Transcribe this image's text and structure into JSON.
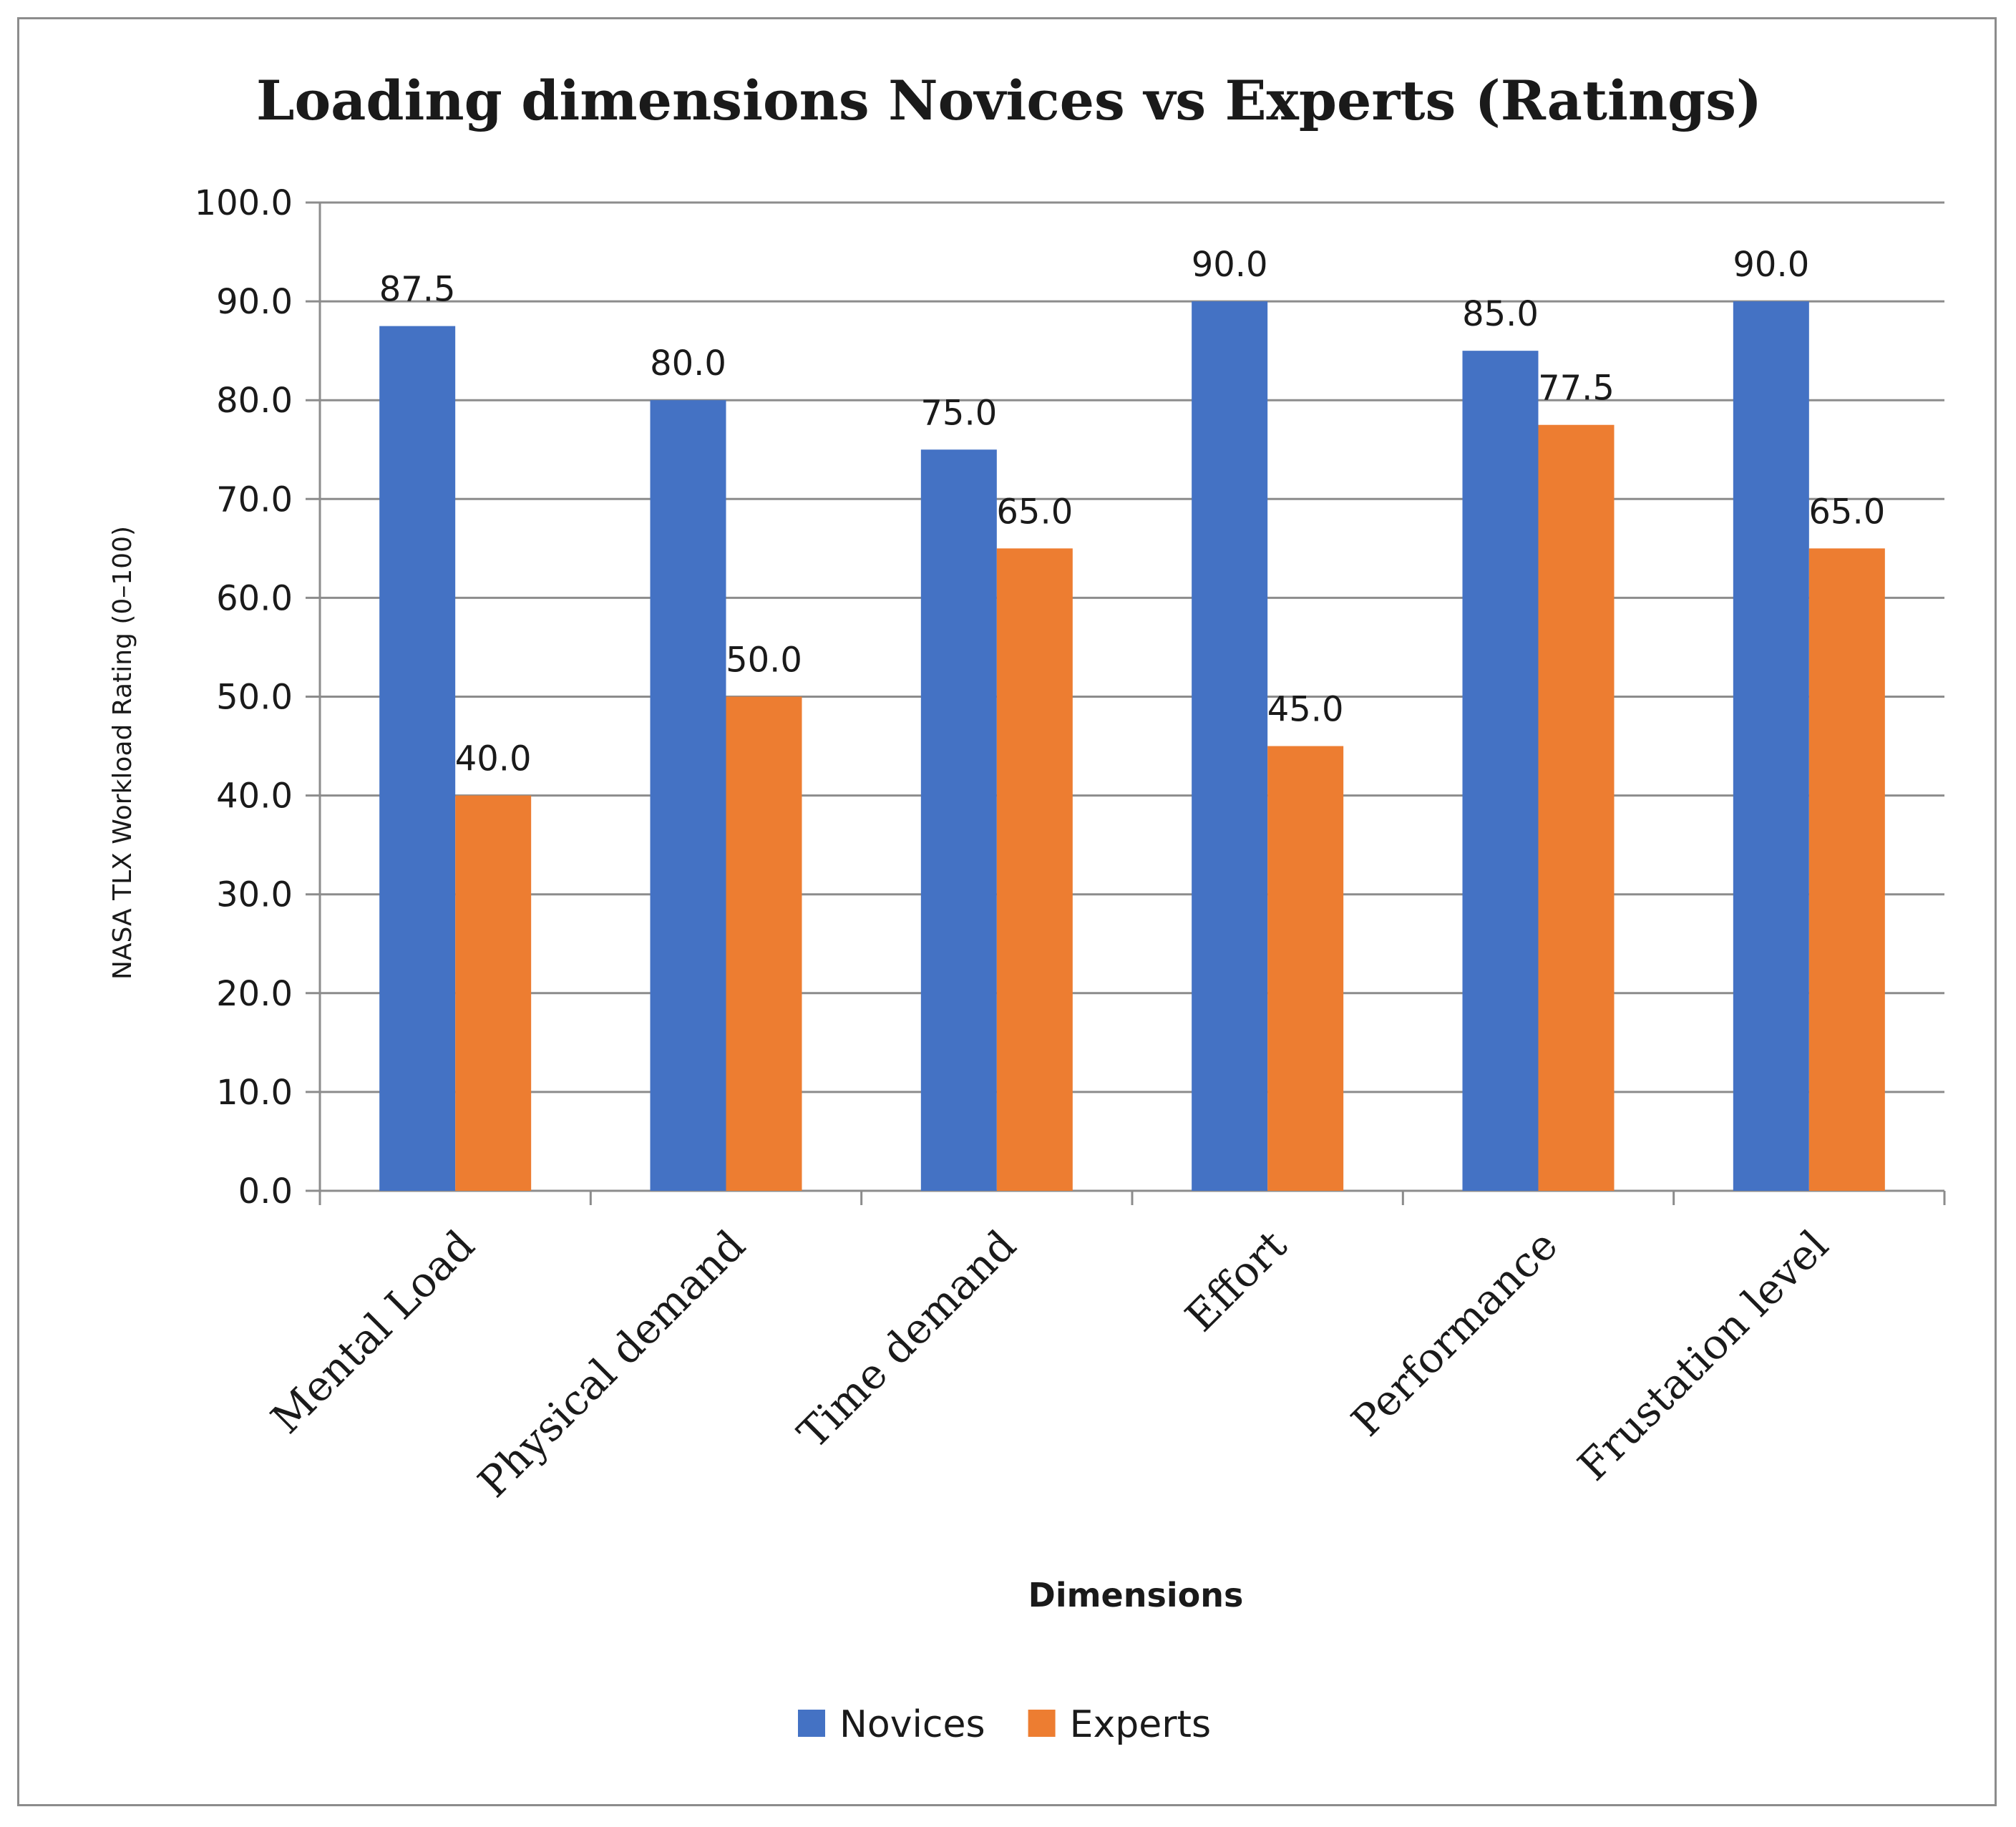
{
  "chart_data": {
    "type": "bar",
    "title": "Loading dimensions Novices vs Experts (Ratings)",
    "xlabel": "Dimensions",
    "ylabel": "NASA TLX Workload Rating (0–100)",
    "categories": [
      "Mental Load",
      "Physical demand",
      "Time demand",
      "Effort",
      "Performance",
      "Frustation level"
    ],
    "series": [
      {
        "name": "Novices",
        "color": "#4472C4",
        "values": [
          87.5,
          80.0,
          75.0,
          90.0,
          85.0,
          90.0
        ]
      },
      {
        "name": "Experts",
        "color": "#ED7D31",
        "values": [
          40.0,
          50.0,
          65.0,
          45.0,
          77.5,
          65.0
        ]
      }
    ],
    "ylim": [
      0,
      100
    ],
    "yticks": [
      0,
      10,
      20,
      30,
      40,
      50,
      60,
      70,
      80,
      90,
      100
    ],
    "grid": true,
    "legend_position": "bottom",
    "data_labels": true
  }
}
